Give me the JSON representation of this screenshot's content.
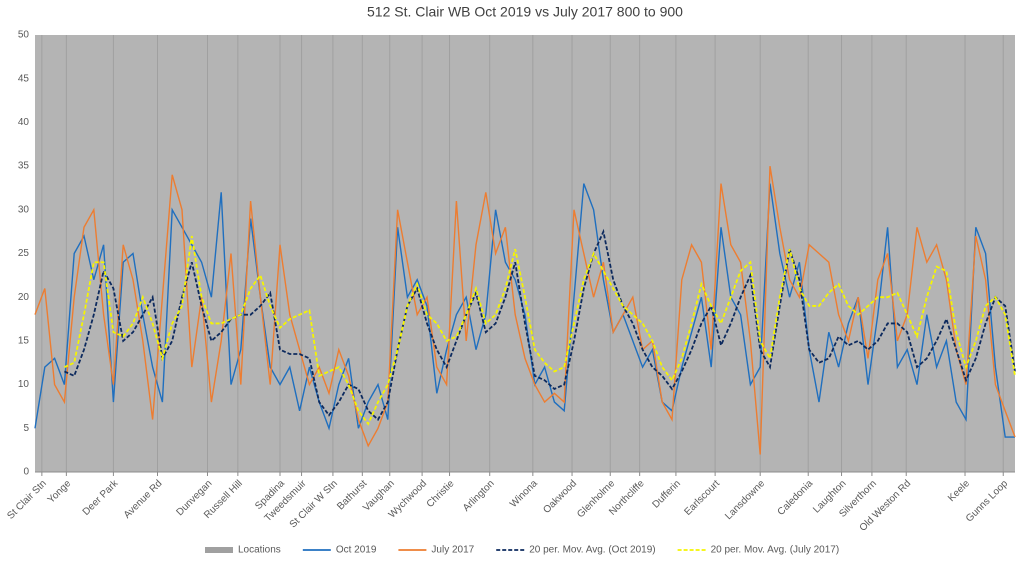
{
  "chart_data": {
    "type": "line",
    "title": "512 St. Clair WB Oct 2019 vs July 2017 800 to 900",
    "x": [
      0,
      1,
      2,
      3,
      4,
      5,
      6,
      7,
      8,
      9,
      10,
      11,
      12,
      13,
      14,
      15,
      16,
      17,
      18,
      19,
      20,
      21,
      22,
      23,
      24,
      25,
      26,
      27,
      28,
      29,
      30,
      31,
      32,
      33,
      34,
      35,
      36,
      37,
      38,
      39,
      40,
      41,
      42,
      43,
      44,
      45,
      46,
      47,
      48,
      49,
      50,
      51,
      52,
      53,
      54,
      55,
      56,
      57,
      58,
      59,
      60,
      61,
      62,
      63,
      64,
      65,
      66,
      67,
      68,
      69,
      70,
      71,
      72,
      73,
      74,
      75,
      76,
      77,
      78,
      79,
      80,
      81,
      82,
      83,
      84,
      85,
      86,
      87,
      88,
      89,
      90,
      91,
      92,
      93,
      94,
      95,
      96,
      97,
      98,
      99,
      100
    ],
    "xlim": [
      0,
      100
    ],
    "xticks": [
      {
        "value": 0.7,
        "label": "St Clair Stn"
      },
      {
        "value": 3.2,
        "label": "Yonge"
      },
      {
        "value": 8,
        "label": "Deer Park"
      },
      {
        "value": 12.5,
        "label": "Avenue Rd"
      },
      {
        "value": 17.6,
        "label": "Dunvegan"
      },
      {
        "value": 20.7,
        "label": "Russell Hill"
      },
      {
        "value": 25,
        "label": "Spadina"
      },
      {
        "value": 27.2,
        "label": "Tweedsmuir"
      },
      {
        "value": 30.4,
        "label": "St Clair W Stn"
      },
      {
        "value": 33.4,
        "label": "Bathurst"
      },
      {
        "value": 36.2,
        "label": "Vaughan"
      },
      {
        "value": 39.5,
        "label": "Wychwood"
      },
      {
        "value": 42.3,
        "label": "Christie"
      },
      {
        "value": 46.4,
        "label": "Arlington"
      },
      {
        "value": 50.8,
        "label": "Winona"
      },
      {
        "value": 54.8,
        "label": "Oakwood"
      },
      {
        "value": 58.7,
        "label": "Glenholme"
      },
      {
        "value": 61.7,
        "label": "Northcliffe"
      },
      {
        "value": 65.4,
        "label": "Dufferin"
      },
      {
        "value": 69.4,
        "label": "Earlscourt"
      },
      {
        "value": 74,
        "label": "Lansdowne"
      },
      {
        "value": 78.9,
        "label": "Caledonia"
      },
      {
        "value": 82.3,
        "label": "Laughton"
      },
      {
        "value": 85.4,
        "label": "Silverthorn"
      },
      {
        "value": 88.9,
        "label": "Old Weston Rd"
      },
      {
        "value": 94.9,
        "label": "Keele"
      },
      {
        "value": 98.8,
        "label": "Gunns Loop"
      }
    ],
    "ylim": [
      0,
      50
    ],
    "yticks": [
      0,
      5,
      10,
      15,
      20,
      25,
      30,
      35,
      40,
      45,
      50
    ],
    "grid": false,
    "legend": "bottom",
    "series": [
      {
        "name": "Locations",
        "color": "#a0a0a0",
        "type": "bar"
      },
      {
        "name": "Oct 2019",
        "color": "#1f6fbf",
        "values": [
          5,
          12,
          13,
          10,
          25,
          27,
          22,
          26,
          8,
          24,
          25,
          18,
          12,
          8,
          30,
          28,
          26,
          24,
          20,
          32,
          10,
          14,
          29,
          20,
          12,
          10,
          12,
          7,
          12,
          8,
          5,
          10,
          13,
          5,
          8,
          10,
          6,
          28,
          20,
          22,
          19,
          9,
          14,
          18,
          20,
          14,
          18,
          30,
          24,
          22,
          18,
          10,
          12,
          8,
          7,
          20,
          33,
          30,
          22,
          16,
          18,
          15,
          12,
          14,
          8,
          7,
          12,
          16,
          20,
          12,
          28,
          20,
          18,
          10,
          12,
          33,
          25,
          20,
          24,
          14,
          8,
          16,
          12,
          17,
          20,
          10,
          18,
          28,
          12,
          14,
          10,
          18,
          12,
          15,
          8,
          6,
          28,
          25,
          12,
          4,
          4
        ]
      },
      {
        "name": "July 2017",
        "color": "#ed7d31",
        "values": [
          18,
          21,
          10,
          8,
          20,
          28,
          30,
          18,
          10,
          26,
          22,
          15,
          6,
          20,
          34,
          30,
          12,
          20,
          8,
          15,
          25,
          10,
          31,
          20,
          10,
          26,
          18,
          14,
          10,
          12,
          9,
          14,
          11,
          6,
          3,
          5,
          8,
          30,
          24,
          18,
          20,
          12,
          10,
          31,
          15,
          26,
          32,
          25,
          28,
          18,
          13,
          10,
          8,
          9,
          8,
          30,
          25,
          20,
          24,
          16,
          18,
          20,
          14,
          15,
          8,
          6,
          22,
          26,
          24,
          14,
          33,
          26,
          24,
          15,
          2,
          35,
          28,
          22,
          20,
          26,
          25,
          24,
          18,
          15,
          20,
          13,
          22,
          25,
          15,
          18,
          28,
          24,
          26,
          22,
          14,
          10,
          27,
          22,
          10,
          7,
          4
        ]
      },
      {
        "name": "20 per. Mov. Avg. (Oct 2019)",
        "color": "#0d2a5e",
        "dash": true,
        "values": [
          null,
          null,
          null,
          11.5,
          11,
          14,
          18,
          23,
          21,
          15,
          16,
          18,
          20,
          13,
          15,
          20,
          24,
          19,
          15,
          16,
          17.5,
          18,
          18,
          19,
          20.5,
          14,
          13.5,
          13.5,
          13,
          8,
          6.5,
          8,
          10,
          9.5,
          7,
          6,
          8,
          14,
          19,
          21,
          17,
          14,
          12,
          15,
          18,
          20.5,
          16,
          17,
          20,
          24,
          17,
          11,
          10.5,
          9.5,
          10,
          15,
          21,
          25,
          27.5,
          22,
          19,
          17,
          14,
          12,
          11,
          9.5,
          11.5,
          14,
          17,
          19,
          14.5,
          17,
          20,
          22.5,
          14,
          12,
          19,
          25.5,
          22,
          14,
          12.5,
          13,
          15.5,
          14.5,
          15,
          14,
          15,
          17,
          17,
          16,
          12,
          13,
          15,
          17.5,
          14,
          10.5,
          13,
          17,
          20,
          19,
          11.5
        ]
      },
      {
        "name": "20 per. Mov. Avg. (July 2017)",
        "color": "#f5f500",
        "dash": true,
        "values": [
          null,
          null,
          null,
          12,
          12.5,
          18,
          24,
          24,
          16,
          15.5,
          17,
          20,
          17,
          13,
          17,
          19,
          27,
          20,
          17,
          17,
          17.5,
          18,
          21,
          22.5,
          19,
          16.5,
          17.5,
          18,
          18.5,
          11,
          11.5,
          12,
          10,
          7,
          5.5,
          8,
          10,
          14,
          19,
          21.5,
          18,
          17,
          15,
          15.5,
          18,
          21,
          17,
          18,
          21,
          25.5,
          20,
          14,
          12.5,
          11.5,
          12,
          17,
          22,
          25,
          23,
          21,
          19,
          18,
          17,
          15,
          12,
          10.5,
          13,
          17,
          21.5,
          19,
          17,
          20,
          23,
          24,
          15,
          13,
          20,
          25.5,
          21,
          19,
          19,
          20.5,
          21.5,
          19,
          18,
          19,
          20,
          20,
          20.5,
          18,
          15.5,
          20,
          23.5,
          23,
          16,
          12,
          15,
          19,
          20,
          18,
          11
        ]
      }
    ]
  }
}
